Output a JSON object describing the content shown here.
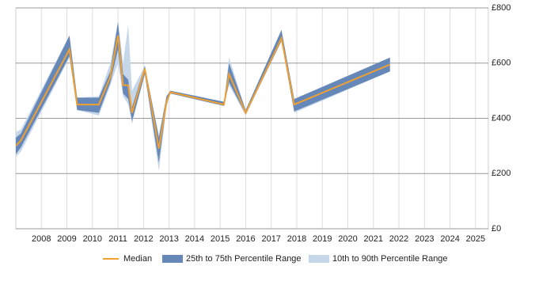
{
  "chart_data": {
    "type": "band-line",
    "x": [
      2007.0,
      2007.2,
      2009.1,
      2009.4,
      2010.25,
      2010.7,
      2011.0,
      2011.2,
      2011.4,
      2011.55,
      2012.05,
      2012.6,
      2012.9,
      2013.05,
      2015.15,
      2015.35,
      2016.0,
      2017.4,
      2017.9,
      2021.65
    ],
    "series": [
      {
        "name": "Median",
        "color": "#f0a030",
        "values": [
          300,
          320,
          650,
          450,
          450,
          550,
          700,
          520,
          520,
          420,
          580,
          290,
          460,
          495,
          450,
          560,
          420,
          690,
          450,
          595
        ]
      },
      {
        "name": "25th to 75th Percentile Range",
        "color": "#6688b8",
        "low": [
          270,
          295,
          625,
          430,
          420,
          530,
          650,
          490,
          470,
          390,
          560,
          240,
          450,
          490,
          445,
          530,
          415,
          680,
          425,
          570
        ],
        "high": [
          330,
          345,
          700,
          475,
          475,
          570,
          750,
          560,
          540,
          440,
          590,
          330,
          480,
          500,
          460,
          600,
          430,
          720,
          470,
          620
        ]
      },
      {
        "name": "10th to 90th Percentile Range",
        "color": "#c6d7ea",
        "low": [
          260,
          280,
          620,
          430,
          410,
          520,
          600,
          480,
          450,
          380,
          560,
          210,
          440,
          490,
          445,
          520,
          410,
          680,
          420,
          570
        ],
        "high": [
          350,
          360,
          700,
          475,
          480,
          600,
          750,
          600,
          740,
          500,
          590,
          340,
          480,
          500,
          460,
          620,
          430,
          720,
          470,
          620
        ]
      }
    ],
    "xlim": [
      2007.0,
      2025.5
    ],
    "xticks": [
      2008,
      2009,
      2010,
      2011,
      2012,
      2013,
      2014,
      2015,
      2016,
      2017,
      2018,
      2019,
      2020,
      2021,
      2022,
      2023,
      2024,
      2025
    ],
    "ylim": [
      0,
      800
    ],
    "yticks": [
      {
        "value": 0,
        "label": "£0"
      },
      {
        "value": 200,
        "label": "£200"
      },
      {
        "value": 400,
        "label": "£400"
      },
      {
        "value": 600,
        "label": "£600"
      },
      {
        "value": 800,
        "label": "£800"
      }
    ],
    "grid": true
  }
}
